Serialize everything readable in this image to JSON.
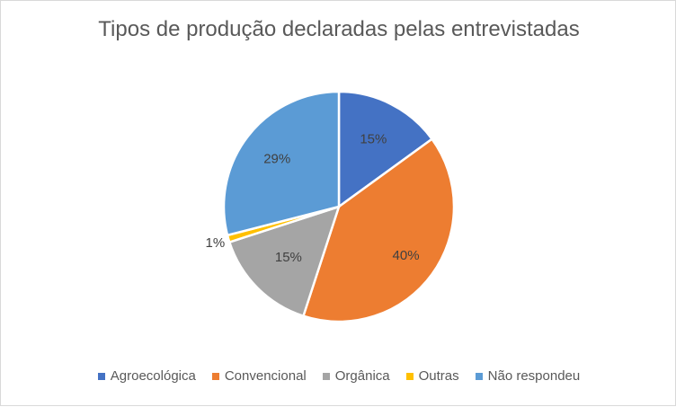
{
  "chart_data": {
    "type": "pie",
    "title": "Tipos de produção declaradas pelas entrevistadas",
    "categories": [
      "Agroecológica",
      "Convencional",
      "Orgânica",
      "Outras",
      "Não respondeu"
    ],
    "values": [
      15,
      40,
      15,
      1,
      29
    ],
    "labels": [
      "15%",
      "40%",
      "15%",
      "1%",
      "29%"
    ],
    "colors": [
      "#4472c4",
      "#ed7d31",
      "#a5a5a5",
      "#ffc000",
      "#5b9bd5"
    ],
    "legend_position": "bottom"
  }
}
